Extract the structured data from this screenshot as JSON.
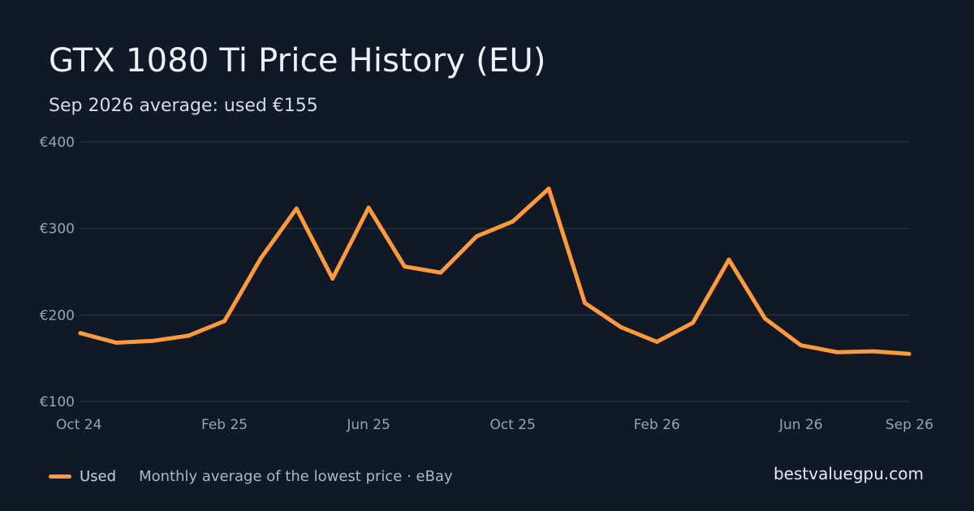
{
  "header": {
    "title": "GTX 1080 Ti Price History (EU)",
    "subtitle": "Sep 2026 average: used €155"
  },
  "legend": {
    "series_label": "Used",
    "note": "Monthly average of the lowest price · eBay"
  },
  "brand": "bestvaluegpu.com",
  "colors": {
    "background": "#111927",
    "line": "#ff9a3c",
    "grid": "#253040"
  },
  "chart_data": {
    "type": "line",
    "title": "GTX 1080 Ti Price History (EU)",
    "subtitle": "Sep 2026 average: used €155",
    "xlabel": "",
    "ylabel": "",
    "x": [
      "2024-10",
      "2024-11",
      "2024-12",
      "2025-01",
      "2025-02",
      "2025-03",
      "2025-04",
      "2025-05",
      "2025-06",
      "2025-07",
      "2025-08",
      "2025-09",
      "2025-10",
      "2025-11",
      "2025-12",
      "2026-01",
      "2026-02",
      "2026-03",
      "2026-04",
      "2026-05",
      "2026-06",
      "2026-07",
      "2026-08",
      "2026-09"
    ],
    "x_ticks": [
      {
        "x": "2024-10",
        "label": "Oct 24"
      },
      {
        "x": "2025-02",
        "label": "Feb 25"
      },
      {
        "x": "2025-06",
        "label": "Jun 25"
      },
      {
        "x": "2025-10",
        "label": "Oct 25"
      },
      {
        "x": "2026-02",
        "label": "Feb 26"
      },
      {
        "x": "2026-06",
        "label": "Jun 26"
      },
      {
        "x": "2026-09",
        "label": "Sep 26"
      }
    ],
    "y_ticks": [
      {
        "value": 100,
        "label": "€100"
      },
      {
        "value": 200,
        "label": "€200"
      },
      {
        "value": 300,
        "label": "€300"
      },
      {
        "value": 400,
        "label": "€400"
      }
    ],
    "ylim": [
      100,
      400
    ],
    "grid": true,
    "legend_position": "bottom-left",
    "series": [
      {
        "name": "Used",
        "color": "#ff9a3c",
        "values": [
          179,
          168,
          170,
          176,
          193,
          265,
          323,
          242,
          324,
          256,
          249,
          291,
          308,
          346,
          214,
          186,
          169,
          191,
          264,
          196,
          165,
          157,
          158,
          155
        ]
      }
    ]
  }
}
